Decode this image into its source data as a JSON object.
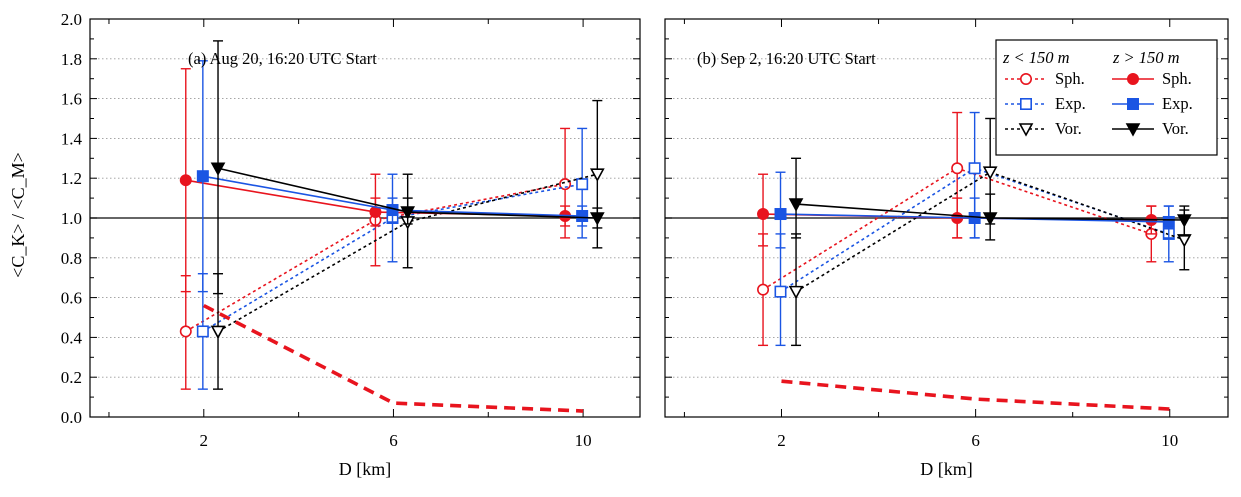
{
  "chart_data": [
    {
      "type": "scatter",
      "title": "",
      "annotation": "(a) Aug 20, 16:20 UTC Start",
      "xlabel": "D [km]",
      "ylabel": "<C_K> / <C_M>",
      "x_ticks": [
        "2",
        "6",
        "10"
      ],
      "y_ticks": [
        "0.0",
        "0.2",
        "0.4",
        "0.6",
        "0.8",
        "1.0",
        "1.2",
        "1.4",
        "1.6",
        "1.8",
        "2.0"
      ],
      "ylim": [
        0,
        2.0
      ],
      "xlim": [
        -0.4,
        11.2
      ],
      "reference_line": 1.0,
      "grid": "horizontal dotted",
      "series": [
        {
          "name": "Sph.",
          "group": "z < 150 m",
          "color": "#e8141e",
          "marker": "open-circle",
          "style": "dotted",
          "x": [
            2,
            6,
            10
          ],
          "y": [
            0.43,
            0.99,
            1.17
          ],
          "err_low": [
            0.14,
            0.76,
            0.9
          ],
          "err_high": [
            0.71,
            1.22,
            1.45
          ]
        },
        {
          "name": "Exp.",
          "group": "z < 150 m",
          "color": "#1b55e3",
          "marker": "open-square",
          "style": "dotted",
          "x": [
            2,
            6,
            10
          ],
          "y": [
            0.43,
            1.0,
            1.17
          ],
          "err_low": [
            0.14,
            0.78,
            0.9
          ],
          "err_high": [
            0.72,
            1.22,
            1.45
          ]
        },
        {
          "name": "Vor.",
          "group": "z < 150 m",
          "color": "#000000",
          "marker": "open-triangle",
          "style": "dotted",
          "x": [
            2,
            6,
            10
          ],
          "y": [
            0.43,
            0.98,
            1.22
          ],
          "err_low": [
            0.14,
            0.75,
            0.85
          ],
          "err_high": [
            0.72,
            1.22,
            1.59
          ]
        },
        {
          "name": "Sph.",
          "group": "z > 150 m",
          "color": "#e8141e",
          "marker": "filled-circle",
          "style": "solid",
          "x": [
            2,
            6,
            10
          ],
          "y": [
            1.19,
            1.03,
            1.01
          ],
          "err_low": [
            0.63,
            0.96,
            0.96
          ],
          "err_high": [
            1.75,
            1.1,
            1.06
          ]
        },
        {
          "name": "Exp.",
          "group": "z > 150 m",
          "color": "#1b55e3",
          "marker": "filled-square",
          "style": "solid",
          "x": [
            2,
            6,
            10
          ],
          "y": [
            1.21,
            1.04,
            1.01
          ],
          "err_low": [
            0.63,
            0.98,
            0.96
          ],
          "err_high": [
            1.79,
            1.1,
            1.06
          ]
        },
        {
          "name": "Vor.",
          "group": "z > 150 m",
          "color": "#000000",
          "marker": "filled-triangle",
          "style": "solid",
          "x": [
            2,
            6,
            10
          ],
          "y": [
            1.25,
            1.03,
            1.0
          ],
          "err_low": [
            0.62,
            0.97,
            0.95
          ],
          "err_high": [
            1.89,
            1.1,
            1.05
          ]
        },
        {
          "name": "",
          "color": "#e8141e",
          "style": "dashed-thick",
          "x": [
            2,
            6,
            10
          ],
          "y": [
            0.56,
            0.07,
            0.03
          ]
        }
      ]
    },
    {
      "type": "scatter",
      "title": "",
      "annotation": "(b) Sep 2, 16:20 UTC Start",
      "xlabel": "D [km]",
      "ylabel": "",
      "x_ticks": [
        "2",
        "6",
        "10"
      ],
      "ylim": [
        0,
        2.0
      ],
      "xlim": [
        -0.4,
        11.2
      ],
      "reference_line": 1.0,
      "grid": "horizontal dotted",
      "legend": {
        "placement": "top-right",
        "headers": [
          "z < 150 m",
          "z > 150 m"
        ]
      },
      "series": [
        {
          "name": "Sph.",
          "group": "z < 150 m",
          "color": "#e8141e",
          "marker": "open-circle",
          "style": "dotted",
          "x": [
            2,
            6,
            10
          ],
          "y": [
            0.64,
            1.25,
            0.92
          ],
          "err_low": [
            0.36,
            0.9,
            0.78
          ],
          "err_high": [
            0.92,
            1.53,
            1.06
          ]
        },
        {
          "name": "Exp.",
          "group": "z < 150 m",
          "color": "#1b55e3",
          "marker": "open-square",
          "style": "dotted",
          "x": [
            2,
            6,
            10
          ],
          "y": [
            0.63,
            1.25,
            0.92
          ],
          "err_low": [
            0.36,
            0.9,
            0.78
          ],
          "err_high": [
            0.92,
            1.53,
            1.06
          ]
        },
        {
          "name": "Vor.",
          "group": "z < 150 m",
          "color": "#000000",
          "marker": "open-triangle",
          "style": "dotted",
          "x": [
            2,
            6,
            10
          ],
          "y": [
            0.63,
            1.23,
            0.89
          ],
          "err_low": [
            0.36,
            0.97,
            0.74
          ],
          "err_high": [
            0.92,
            1.5,
            1.04
          ]
        },
        {
          "name": "Sph.",
          "group": "z > 150 m",
          "color": "#e8141e",
          "marker": "filled-circle",
          "style": "solid",
          "x": [
            2,
            6,
            10
          ],
          "y": [
            1.02,
            1.0,
            0.99
          ],
          "err_low": [
            0.86,
            0.9,
            0.92
          ],
          "err_high": [
            1.22,
            1.1,
            1.06
          ]
        },
        {
          "name": "Exp.",
          "group": "z > 150 m",
          "color": "#1b55e3",
          "marker": "filled-square",
          "style": "solid",
          "x": [
            2,
            6,
            10
          ],
          "y": [
            1.02,
            1.0,
            0.98
          ],
          "err_low": [
            0.85,
            0.9,
            0.9
          ],
          "err_high": [
            1.23,
            1.1,
            1.06
          ]
        },
        {
          "name": "Vor.",
          "group": "z > 150 m",
          "color": "#000000",
          "marker": "filled-triangle",
          "style": "solid",
          "x": [
            2,
            6,
            10
          ],
          "y": [
            1.07,
            1.0,
            0.99
          ],
          "err_low": [
            0.9,
            0.89,
            0.91
          ],
          "err_high": [
            1.3,
            1.12,
            1.06
          ]
        },
        {
          "name": "",
          "color": "#e8141e",
          "style": "dashed-thick",
          "x": [
            2,
            6,
            10
          ],
          "y": [
            0.18,
            0.09,
            0.04
          ]
        }
      ]
    }
  ]
}
